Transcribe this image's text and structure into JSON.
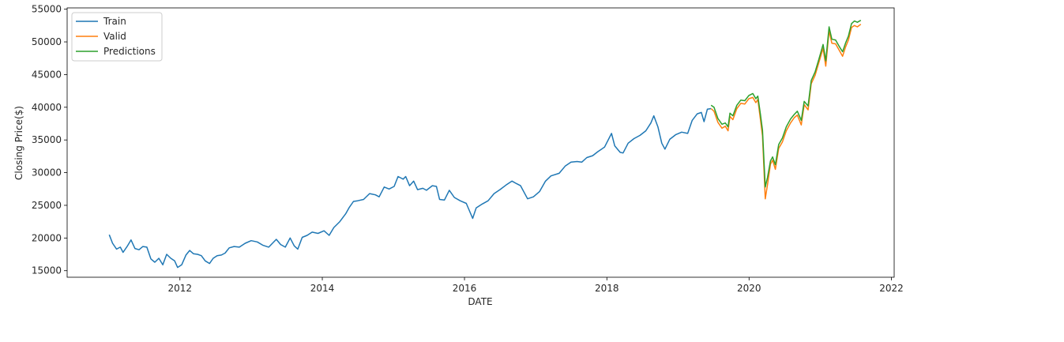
{
  "chart_data": {
    "type": "line",
    "title": "",
    "xlabel": "DATE",
    "ylabel": "Closing Price($)",
    "xlim": [
      "2010-06-01",
      "2022-01-15"
    ],
    "ylim": [
      14000,
      55200
    ],
    "x_ticks": [
      "2012",
      "2014",
      "2016",
      "2018",
      "2020",
      "2022"
    ],
    "y_ticks": [
      "15000",
      "20000",
      "25000",
      "30000",
      "35000",
      "40000",
      "45000",
      "50000",
      "55000"
    ],
    "legend": {
      "position": "top-left",
      "entries": [
        "Train",
        "Valid",
        "Predictions"
      ]
    },
    "grid": false,
    "series": [
      {
        "name": "Train",
        "color": "#1f77b4",
        "points": [
          [
            "2011-01-03",
            20500
          ],
          [
            "2011-01-20",
            19200
          ],
          [
            "2011-02-10",
            18300
          ],
          [
            "2011-03-01",
            18600
          ],
          [
            "2011-03-15",
            17800
          ],
          [
            "2011-04-05",
            18700
          ],
          [
            "2011-04-25",
            19700
          ],
          [
            "2011-05-15",
            18400
          ],
          [
            "2011-06-05",
            18200
          ],
          [
            "2011-06-25",
            18700
          ],
          [
            "2011-07-15",
            18600
          ],
          [
            "2011-08-05",
            16800
          ],
          [
            "2011-08-25",
            16300
          ],
          [
            "2011-09-15",
            16900
          ],
          [
            "2011-10-05",
            15900
          ],
          [
            "2011-10-25",
            17500
          ],
          [
            "2011-11-15",
            16900
          ],
          [
            "2011-12-05",
            16500
          ],
          [
            "2011-12-20",
            15500
          ],
          [
            "2012-01-10",
            15900
          ],
          [
            "2012-02-01",
            17400
          ],
          [
            "2012-02-20",
            18100
          ],
          [
            "2012-03-10",
            17600
          ],
          [
            "2012-04-01",
            17500
          ],
          [
            "2012-04-20",
            17300
          ],
          [
            "2012-05-10",
            16500
          ],
          [
            "2012-06-01",
            16100
          ],
          [
            "2012-06-20",
            16900
          ],
          [
            "2012-07-10",
            17300
          ],
          [
            "2012-08-01",
            17400
          ],
          [
            "2012-08-20",
            17700
          ],
          [
            "2012-09-10",
            18500
          ],
          [
            "2012-10-05",
            18700
          ],
          [
            "2012-11-01",
            18600
          ],
          [
            "2012-12-01",
            19200
          ],
          [
            "2013-01-01",
            19600
          ],
          [
            "2013-02-01",
            19400
          ],
          [
            "2013-03-01",
            18900
          ],
          [
            "2013-04-01",
            18600
          ],
          [
            "2013-05-10",
            19800
          ],
          [
            "2013-06-01",
            19000
          ],
          [
            "2013-06-25",
            18600
          ],
          [
            "2013-07-20",
            20000
          ],
          [
            "2013-08-10",
            18800
          ],
          [
            "2013-08-28",
            18300
          ],
          [
            "2013-09-20",
            20100
          ],
          [
            "2013-10-15",
            20400
          ],
          [
            "2013-11-10",
            20900
          ],
          [
            "2013-12-10",
            20700
          ],
          [
            "2014-01-10",
            21100
          ],
          [
            "2014-02-05",
            20400
          ],
          [
            "2014-03-01",
            21600
          ],
          [
            "2014-04-01",
            22500
          ],
          [
            "2014-05-01",
            23700
          ],
          [
            "2014-05-20",
            24700
          ],
          [
            "2014-06-10",
            25600
          ],
          [
            "2014-07-01",
            25700
          ],
          [
            "2014-08-01",
            25900
          ],
          [
            "2014-09-01",
            26800
          ],
          [
            "2014-10-01",
            26600
          ],
          [
            "2014-10-20",
            26300
          ],
          [
            "2014-11-15",
            27800
          ],
          [
            "2014-12-10",
            27500
          ],
          [
            "2015-01-05",
            27900
          ],
          [
            "2015-01-25",
            29400
          ],
          [
            "2015-02-20",
            29000
          ],
          [
            "2015-03-05",
            29400
          ],
          [
            "2015-03-25",
            28000
          ],
          [
            "2015-04-15",
            28700
          ],
          [
            "2015-05-05",
            27400
          ],
          [
            "2015-06-01",
            27600
          ],
          [
            "2015-06-20",
            27300
          ],
          [
            "2015-07-20",
            28000
          ],
          [
            "2015-08-10",
            27900
          ],
          [
            "2015-08-26",
            25900
          ],
          [
            "2015-09-20",
            25800
          ],
          [
            "2015-10-15",
            27300
          ],
          [
            "2015-11-10",
            26200
          ],
          [
            "2015-12-10",
            25700
          ],
          [
            "2016-01-10",
            25300
          ],
          [
            "2016-02-12",
            23000
          ],
          [
            "2016-03-01",
            24600
          ],
          [
            "2016-04-01",
            25200
          ],
          [
            "2016-05-01",
            25700
          ],
          [
            "2016-06-01",
            26800
          ],
          [
            "2016-07-01",
            27400
          ],
          [
            "2016-08-01",
            28100
          ],
          [
            "2016-09-01",
            28700
          ],
          [
            "2016-09-25",
            28300
          ],
          [
            "2016-10-15",
            28000
          ],
          [
            "2016-11-20",
            26000
          ],
          [
            "2016-12-20",
            26300
          ],
          [
            "2017-01-20",
            27100
          ],
          [
            "2017-02-20",
            28700
          ],
          [
            "2017-03-20",
            29500
          ],
          [
            "2017-05-01",
            29900
          ],
          [
            "2017-06-01",
            31000
          ],
          [
            "2017-07-01",
            31600
          ],
          [
            "2017-08-01",
            31700
          ],
          [
            "2017-08-25",
            31600
          ],
          [
            "2017-09-20",
            32300
          ],
          [
            "2017-10-20",
            32600
          ],
          [
            "2017-11-15",
            33200
          ],
          [
            "2017-12-20",
            33900
          ],
          [
            "2018-01-25",
            36000
          ],
          [
            "2018-02-10",
            34100
          ],
          [
            "2018-03-10",
            33100
          ],
          [
            "2018-03-25",
            33000
          ],
          [
            "2018-04-20",
            34500
          ],
          [
            "2018-05-20",
            35200
          ],
          [
            "2018-06-20",
            35700
          ],
          [
            "2018-07-20",
            36400
          ],
          [
            "2018-08-15",
            37600
          ],
          [
            "2018-08-30",
            38700
          ],
          [
            "2018-09-20",
            37000
          ],
          [
            "2018-10-10",
            34500
          ],
          [
            "2018-10-26",
            33600
          ],
          [
            "2018-11-20",
            35100
          ],
          [
            "2018-12-20",
            35800
          ],
          [
            "2019-01-20",
            36200
          ],
          [
            "2019-02-20",
            36000
          ],
          [
            "2019-03-15",
            38000
          ],
          [
            "2019-04-10",
            39000
          ],
          [
            "2019-05-01",
            39200
          ],
          [
            "2019-05-15",
            37800
          ],
          [
            "2019-06-01",
            39700
          ],
          [
            "2019-06-20",
            39800
          ]
        ]
      },
      {
        "name": "Valid",
        "color": "#ff7f0e",
        "points": [
          [
            "2019-06-20",
            39800
          ],
          [
            "2019-07-05",
            39400
          ],
          [
            "2019-07-25",
            37700
          ],
          [
            "2019-08-15",
            36800
          ],
          [
            "2019-09-01",
            37100
          ],
          [
            "2019-09-15",
            36400
          ],
          [
            "2019-09-25",
            38600
          ],
          [
            "2019-10-10",
            38100
          ],
          [
            "2019-10-30",
            39800
          ],
          [
            "2019-11-20",
            40600
          ],
          [
            "2019-12-10",
            40500
          ],
          [
            "2019-12-31",
            41300
          ],
          [
            "2020-01-20",
            41500
          ],
          [
            "2020-02-05",
            40700
          ],
          [
            "2020-02-15",
            41200
          ],
          [
            "2020-02-28",
            38200
          ],
          [
            "2020-03-10",
            35600
          ],
          [
            "2020-03-24",
            26000
          ],
          [
            "2020-04-05",
            28200
          ],
          [
            "2020-04-20",
            31300
          ],
          [
            "2020-05-01",
            31900
          ],
          [
            "2020-05-15",
            30500
          ],
          [
            "2020-06-01",
            33700
          ],
          [
            "2020-06-20",
            34700
          ],
          [
            "2020-07-10",
            36400
          ],
          [
            "2020-08-01",
            37600
          ],
          [
            "2020-08-20",
            38400
          ],
          [
            "2020-09-05",
            38800
          ],
          [
            "2020-09-25",
            37300
          ],
          [
            "2020-10-10",
            40400
          ],
          [
            "2020-10-30",
            39600
          ],
          [
            "2020-11-15",
            43600
          ],
          [
            "2020-12-05",
            44900
          ],
          [
            "2020-12-25",
            46900
          ],
          [
            "2021-01-15",
            49000
          ],
          [
            "2021-01-29",
            46300
          ],
          [
            "2021-02-15",
            51700
          ],
          [
            "2021-03-01",
            49800
          ],
          [
            "2021-03-20",
            49700
          ],
          [
            "2021-04-10",
            48600
          ],
          [
            "2021-04-25",
            47800
          ],
          [
            "2021-05-10",
            49200
          ],
          [
            "2021-05-25",
            50300
          ],
          [
            "2021-06-10",
            52200
          ],
          [
            "2021-06-25",
            52500
          ],
          [
            "2021-07-10",
            52300
          ],
          [
            "2021-07-28",
            52700
          ]
        ]
      },
      {
        "name": "Predictions",
        "color": "#2ca02c",
        "points": [
          [
            "2019-06-20",
            40300
          ],
          [
            "2019-07-05",
            40000
          ],
          [
            "2019-07-25",
            38300
          ],
          [
            "2019-08-15",
            37400
          ],
          [
            "2019-09-01",
            37600
          ],
          [
            "2019-09-15",
            37000
          ],
          [
            "2019-09-25",
            39100
          ],
          [
            "2019-10-10",
            38700
          ],
          [
            "2019-10-30",
            40300
          ],
          [
            "2019-11-20",
            41100
          ],
          [
            "2019-12-10",
            41000
          ],
          [
            "2019-12-31",
            41800
          ],
          [
            "2020-01-20",
            42100
          ],
          [
            "2020-02-05",
            41300
          ],
          [
            "2020-02-15",
            41700
          ],
          [
            "2020-02-28",
            39000
          ],
          [
            "2020-03-10",
            36500
          ],
          [
            "2020-03-24",
            27800
          ],
          [
            "2020-04-05",
            29300
          ],
          [
            "2020-04-20",
            31800
          ],
          [
            "2020-05-01",
            32400
          ],
          [
            "2020-05-15",
            31200
          ],
          [
            "2020-06-01",
            34300
          ],
          [
            "2020-06-20",
            35300
          ],
          [
            "2020-07-10",
            37000
          ],
          [
            "2020-08-01",
            38200
          ],
          [
            "2020-08-20",
            38900
          ],
          [
            "2020-09-05",
            39400
          ],
          [
            "2020-09-25",
            38000
          ],
          [
            "2020-10-10",
            40900
          ],
          [
            "2020-10-30",
            40200
          ],
          [
            "2020-11-15",
            44100
          ],
          [
            "2020-12-05",
            45400
          ],
          [
            "2020-12-25",
            47400
          ],
          [
            "2021-01-15",
            49600
          ],
          [
            "2021-01-29",
            47100
          ],
          [
            "2021-02-15",
            52300
          ],
          [
            "2021-03-01",
            50400
          ],
          [
            "2021-03-20",
            50300
          ],
          [
            "2021-04-10",
            49200
          ],
          [
            "2021-04-25",
            48500
          ],
          [
            "2021-05-10",
            49800
          ],
          [
            "2021-05-25",
            50900
          ],
          [
            "2021-06-10",
            52800
          ],
          [
            "2021-06-25",
            53200
          ],
          [
            "2021-07-10",
            53000
          ],
          [
            "2021-07-28",
            53300
          ]
        ]
      }
    ]
  }
}
